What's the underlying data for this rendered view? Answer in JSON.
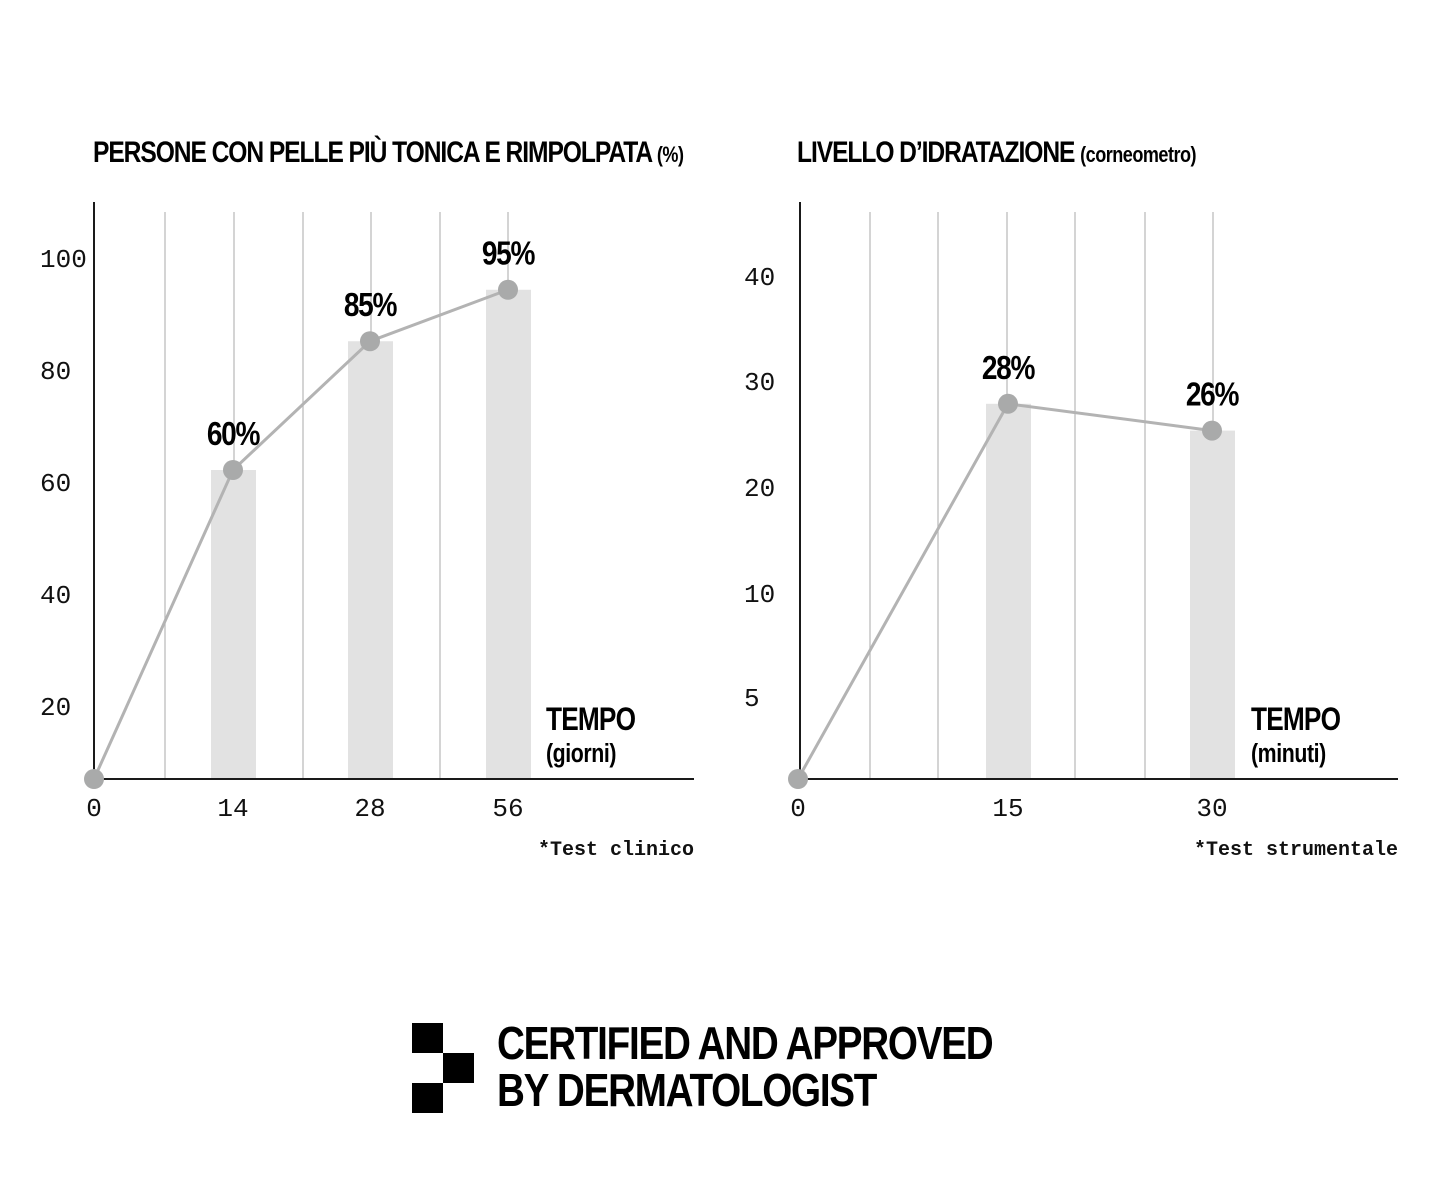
{
  "charts": [
    {
      "title_main": "PERSONE CON PELLE PIÙ TONICA E RIMPOLPATA",
      "title_unit": "(%)",
      "chart_data": {
        "type": "bar",
        "categories": [
          "0",
          "14",
          "28",
          "56"
        ],
        "values": [
          0,
          60,
          85,
          95
        ],
        "data_labels": [
          "",
          "60%",
          "85%",
          "95%"
        ],
        "line_overlay": true,
        "y_ticks": [
          "20",
          "40",
          "60",
          "80",
          "100"
        ],
        "xlabel": "TEMPO",
        "xlabel_unit": "(giorni)",
        "footnote": "*Test clinico",
        "grid": "vertical"
      }
    },
    {
      "title_main": "LIVELLO D’IDRATAZIONE",
      "title_unit": "(corneometro)",
      "chart_data": {
        "type": "bar",
        "categories": [
          "0",
          "15",
          "30"
        ],
        "values": [
          0,
          28,
          26
        ],
        "data_labels": [
          "",
          "28%",
          "26%"
        ],
        "line_overlay": true,
        "y_ticks": [
          "5",
          "10",
          "20",
          "30",
          "40"
        ],
        "xlabel": "TEMPO",
        "xlabel_unit": "(minuti)",
        "footnote": "*Test strumentale",
        "grid": "vertical"
      }
    }
  ],
  "badge": {
    "line1": "CERTIFIED AND APPROVED",
    "line2": "BY DERMATOLOGIST"
  },
  "colors": {
    "bar": "#e2e2e2",
    "line": "#b3b3b3",
    "point": "#a9aaaa",
    "grid": "#bdbdbd",
    "axis": "#1a1a1a"
  }
}
